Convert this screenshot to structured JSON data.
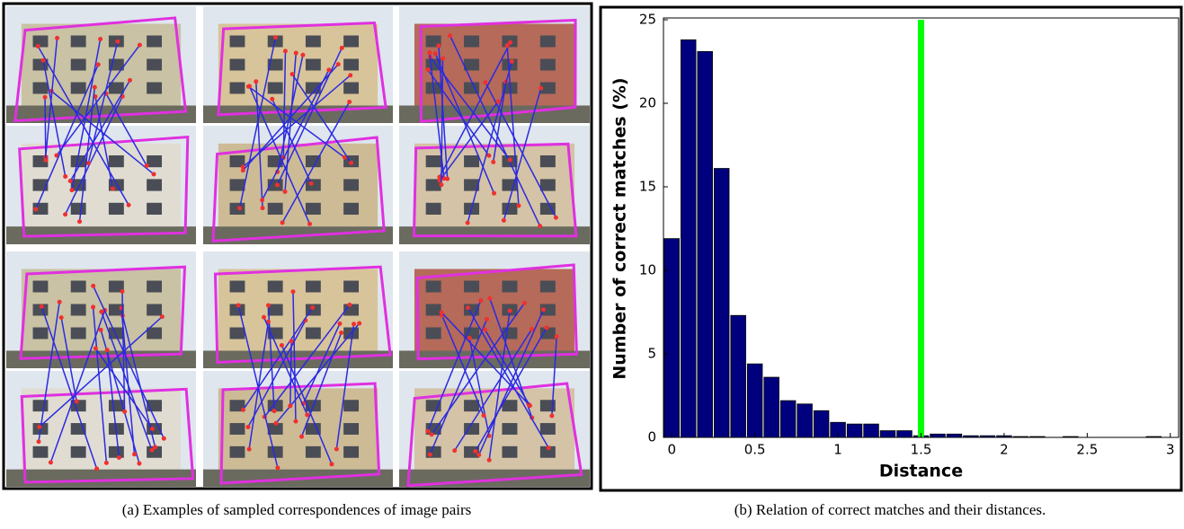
{
  "figure": {
    "left_caption": "(a) Examples of sampled correspondences of image pairs",
    "right_caption": "(b) Relation of correct matches and their distances."
  },
  "chart_data": {
    "type": "bar",
    "xlabel": "Distance",
    "ylabel": "Number of correct matches (%)",
    "x": [
      0,
      0.1,
      0.2,
      0.3,
      0.4,
      0.5,
      0.6,
      0.7,
      0.8,
      0.9,
      1.0,
      1.1,
      1.2,
      1.3,
      1.4,
      1.5,
      1.6,
      1.7,
      1.8,
      1.9,
      2.0,
      2.1,
      2.2,
      2.3,
      2.4,
      2.5,
      2.6,
      2.7,
      2.8,
      2.9
    ],
    "values": [
      11.9,
      23.8,
      23.1,
      16.1,
      7.3,
      4.4,
      3.6,
      2.2,
      2.0,
      1.6,
      0.9,
      0.8,
      0.8,
      0.4,
      0.4,
      0.1,
      0.2,
      0.2,
      0.1,
      0.1,
      0.1,
      0.05,
      0.05,
      0,
      0.05,
      0,
      0,
      0,
      0,
      0.05
    ],
    "bar_width": 0.09,
    "color": "#00007f",
    "reference_line": {
      "value": 1.5,
      "color": "#00ff00"
    },
    "xlim": [
      -0.05,
      3.05
    ],
    "ylim": [
      0,
      25
    ],
    "xticks": [
      0,
      0.5,
      1,
      1.5,
      2,
      2.5,
      3
    ],
    "yticks": [
      0,
      5,
      10,
      15,
      20,
      25
    ]
  }
}
